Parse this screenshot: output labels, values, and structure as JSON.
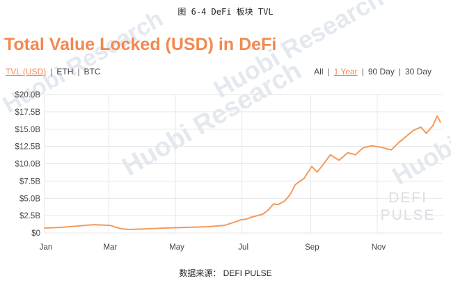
{
  "figure_caption": "图 6-4 DeFi 板块 TVL",
  "source_note": "数据来源： DEFI PULSE",
  "watermarks": {
    "huobi_research": "Huobi Research",
    "huobi": "Huobi",
    "defi_pulse_line1": "DEFI",
    "defi_pulse_line2": "PULSE"
  },
  "currency_options": [
    "TVL (USD)",
    "ETH",
    "BTC"
  ],
  "currency_selected": "TVL (USD)",
  "range_options": [
    "All",
    "1 Year",
    "90 Day",
    "30 Day"
  ],
  "range_selected": "1 Year",
  "colors": {
    "accent": "#f2894f",
    "line": "#f49a5c",
    "grid": "#e6e6e6"
  },
  "chart_data": {
    "type": "line",
    "title": "Total Value Locked (USD) in DeFi",
    "xlabel": "",
    "ylabel": "",
    "x_tick_labels": [
      "Jan",
      "Mar",
      "May",
      "Jul",
      "Sep",
      "Nov"
    ],
    "x_tick_days": [
      0,
      59,
      120,
      181,
      244,
      305
    ],
    "y_tick_labels": [
      "$0",
      "$2.5B",
      "$5.0B",
      "$7.5B",
      "$10.0B",
      "$12.5B",
      "$15.0B",
      "$17.5B",
      "$20.0B"
    ],
    "y_tick_values": [
      0,
      2.5,
      5,
      7.5,
      10,
      12.5,
      15,
      17.5,
      20
    ],
    "ylim": [
      0,
      20
    ],
    "x_unit": "day of year (from Jan 1)",
    "y_unit": "USD billions",
    "grid": true,
    "series": [
      {
        "x": [
          0,
          15,
          30,
          45,
          60,
          70,
          78,
          95,
          110,
          130,
          150,
          165,
          175,
          180,
          185,
          190,
          200,
          205,
          210,
          214,
          220,
          225,
          230,
          238,
          245,
          250,
          255,
          262,
          270,
          278,
          285,
          292,
          300,
          308,
          318,
          325,
          332,
          338,
          345,
          350,
          356,
          360,
          363
        ],
        "y": [
          0.7,
          0.8,
          1.0,
          1.2,
          1.1,
          0.6,
          0.5,
          0.6,
          0.7,
          0.8,
          0.9,
          1.1,
          1.6,
          1.9,
          2.0,
          2.3,
          2.7,
          3.3,
          4.2,
          4.1,
          4.6,
          5.5,
          7.0,
          7.9,
          9.6,
          8.8,
          9.8,
          11.3,
          10.5,
          11.6,
          11.3,
          12.3,
          12.6,
          12.4,
          12.0,
          13.1,
          14.0,
          14.8,
          15.3,
          14.4,
          15.5,
          16.9,
          16.0
        ]
      }
    ]
  }
}
